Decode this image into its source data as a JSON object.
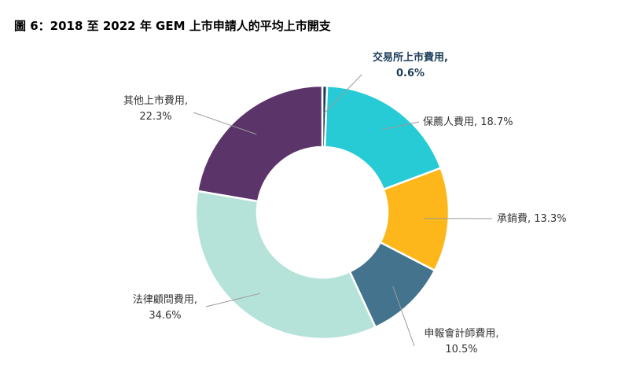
{
  "title": "圖 6：2018 至 2022 年 GEM 上市申請人的平均上市開支",
  "chart_data": {
    "type": "pie",
    "title": "圖 6：2018 至 2022 年 GEM 上市申請人的平均上市開支",
    "unit": "%",
    "slices": [
      {
        "name": "交易所上市費用",
        "value": 0.6,
        "color": "#1c3d5a",
        "label_lines": [
          "交易所上市費用,",
          "0.6%"
        ],
        "highlight": true
      },
      {
        "name": "保薦人費用",
        "value": 18.7,
        "color": "#26cbd6",
        "label_lines": [
          "保薦人費用, 18.7%"
        ]
      },
      {
        "name": "承銷費",
        "value": 13.3,
        "color": "#fdb71a",
        "label_lines": [
          "承銷費, 13.3%"
        ]
      },
      {
        "name": "申報會計師費用",
        "value": 10.5,
        "color": "#43738d",
        "label_lines": [
          "申報會計師費用,",
          "10.5%"
        ]
      },
      {
        "name": "法律顧問費用",
        "value": 34.6,
        "color": "#b6e3d9",
        "label_lines": [
          "法律顧問費用,",
          "34.6%"
        ]
      },
      {
        "name": "其他上市費用",
        "value": 22.3,
        "color": "#5b346a",
        "label_lines": [
          "其他上市費用,",
          "22.3%"
        ]
      }
    ]
  }
}
